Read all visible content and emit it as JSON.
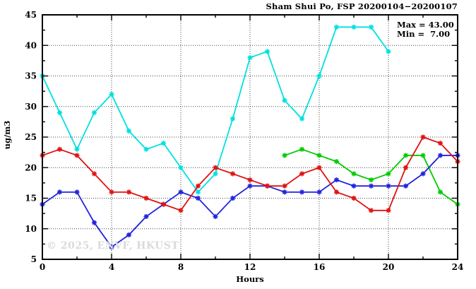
{
  "title": "Sham Shui Po, FSP 20200104−20200107",
  "annotation": {
    "max": "Max = 43.00",
    "min": "Min =  7.00"
  },
  "watermark": "© 2025, ENVF, HKUST",
  "chart_data": {
    "type": "line",
    "title": "Sham Shui Po, FSP 20200104−20200107",
    "xlabel": "Hours",
    "ylabel": "ug/m3",
    "xlim": [
      0,
      24
    ],
    "ylim": [
      5,
      45
    ],
    "x_major_ticks": [
      0,
      4,
      8,
      12,
      16,
      20,
      24
    ],
    "x_minor_ticks": [
      2,
      6,
      10,
      14,
      18,
      22
    ],
    "y_major_ticks": [
      5,
      10,
      15,
      20,
      25,
      30,
      35,
      40,
      45
    ],
    "y_minor_ticks": [
      7.5,
      12.5,
      17.5,
      22.5,
      27.5,
      32.5,
      37.5,
      42.5
    ],
    "grid_x": [
      4,
      8,
      12,
      16,
      20
    ],
    "grid_y": [
      10,
      15,
      20,
      25,
      30,
      35,
      40
    ],
    "grid_on": true,
    "legend_position": "none",
    "annotations": {
      "max": 43.0,
      "min": 7.0
    },
    "marker": "star",
    "series": [
      {
        "name": "series-cyan",
        "color": "#00e0e0",
        "x": [
          0,
          1,
          2,
          3,
          4,
          5,
          6,
          7,
          8,
          9,
          10,
          11,
          12,
          13,
          14,
          15,
          16,
          17,
          18,
          19,
          20
        ],
        "values": [
          35,
          29,
          23,
          29,
          32,
          26,
          23,
          24,
          20,
          16,
          19,
          28,
          38,
          39,
          31,
          28,
          35,
          43,
          43,
          43,
          39
        ]
      },
      {
        "name": "series-green",
        "color": "#00cc00",
        "x": [
          14,
          15,
          16,
          17,
          18,
          19,
          20,
          21,
          22,
          23,
          24
        ],
        "values": [
          22,
          23,
          22,
          21,
          19,
          18,
          19,
          22,
          22,
          16,
          14
        ]
      },
      {
        "name": "series-blue",
        "color": "#2222dd",
        "x": [
          0,
          1,
          2,
          3,
          4,
          5,
          6,
          7,
          8,
          9,
          10,
          11,
          12,
          13,
          14,
          15,
          16,
          17,
          18,
          19,
          20,
          21,
          22,
          23,
          24
        ],
        "values": [
          14,
          16,
          16,
          11,
          7,
          9,
          12,
          14,
          16,
          15,
          12,
          15,
          17,
          17,
          16,
          16,
          16,
          18,
          17,
          17,
          17,
          17,
          19,
          22,
          22
        ]
      },
      {
        "name": "series-red",
        "color": "#e01212",
        "x": [
          0,
          1,
          2,
          3,
          4,
          5,
          6,
          7,
          8,
          9,
          10,
          11,
          12,
          13,
          14,
          15,
          16,
          17,
          18,
          19,
          20,
          21,
          22,
          23,
          24
        ],
        "values": [
          22,
          23,
          22,
          19,
          16,
          16,
          15,
          14,
          13,
          17,
          20,
          19,
          18,
          17,
          17,
          19,
          20,
          16,
          15,
          13,
          13,
          20,
          25,
          24,
          21
        ]
      }
    ]
  }
}
